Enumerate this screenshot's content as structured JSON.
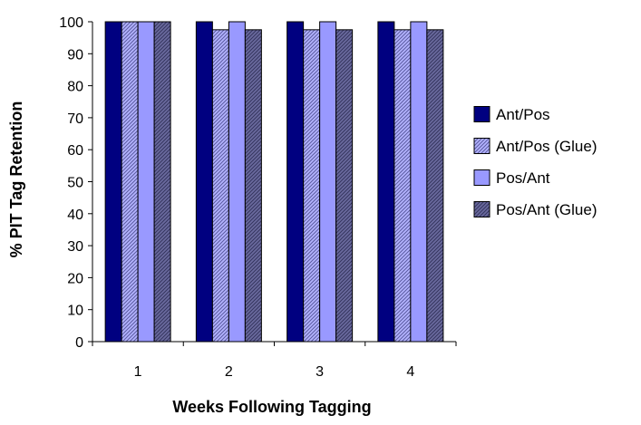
{
  "chart_data": {
    "type": "bar",
    "title": "",
    "xlabel": "Weeks Following Tagging",
    "ylabel": "% PIT Tag Retention",
    "categories": [
      "1",
      "2",
      "3",
      "4"
    ],
    "ylim": [
      0,
      100
    ],
    "yticks": [
      0,
      10,
      20,
      30,
      40,
      50,
      60,
      70,
      80,
      90,
      100
    ],
    "grid": false,
    "legend_position": "right",
    "series": [
      {
        "name": "Ant/Pos",
        "values": [
          100,
          100,
          100,
          100
        ],
        "color": "#000080",
        "pattern": "solid"
      },
      {
        "name": "Ant/Pos (Glue)",
        "values": [
          100,
          97.5,
          97.5,
          97.5
        ],
        "color": "#9999ff",
        "pattern": "diagonal-light"
      },
      {
        "name": "Pos/Ant",
        "values": [
          100,
          100,
          100,
          100
        ],
        "color": "#9999ff",
        "pattern": "solid"
      },
      {
        "name": "Pos/Ant (Glue)",
        "values": [
          100,
          97.5,
          97.5,
          97.5
        ],
        "color": "#666699",
        "pattern": "diagonal-dark"
      }
    ]
  }
}
